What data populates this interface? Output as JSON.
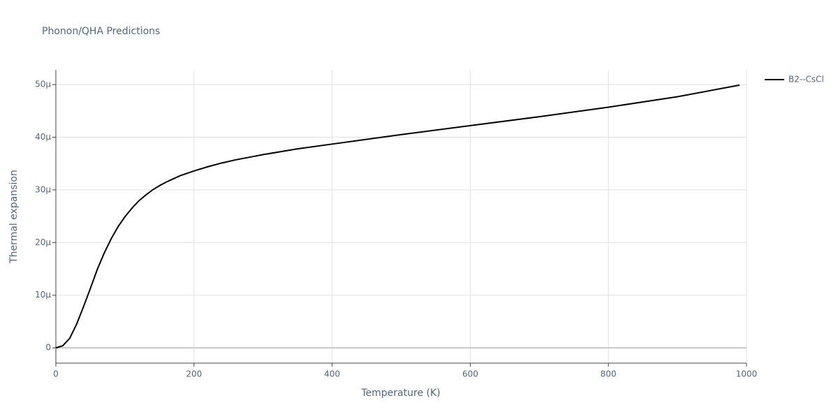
{
  "chart_data": {
    "type": "line",
    "title": "Phonon/QHA Predictions",
    "x_label": "Temperature (K)",
    "y_label": "Thermal expansion",
    "x": [
      0,
      10,
      20,
      30,
      40,
      50,
      60,
      70,
      80,
      90,
      100,
      110,
      120,
      130,
      140,
      150,
      160,
      170,
      180,
      200,
      220,
      240,
      260,
      280,
      300,
      350,
      400,
      450,
      500,
      600,
      700,
      800,
      900,
      990
    ],
    "series": [
      {
        "name": "B2--CsCl",
        "color": "#000000",
        "values": [
          0,
          0.4,
          1.8,
          4.5,
          7.8,
          11.3,
          14.9,
          18.0,
          20.7,
          23.0,
          24.9,
          26.5,
          27.9,
          29.0,
          30.0,
          30.8,
          31.5,
          32.1,
          32.7,
          33.6,
          34.4,
          35.1,
          35.7,
          36.2,
          36.7,
          37.8,
          38.7,
          39.6,
          40.5,
          42.2,
          43.9,
          45.7,
          47.7,
          49.9
        ]
      }
    ],
    "xlim": [
      0,
      1000
    ],
    "xticks": [
      0,
      200,
      400,
      600,
      800,
      1000
    ],
    "ylim": [
      -2.9,
      52.8
    ],
    "yticks": [
      0,
      {
        "value": 10,
        "label": "10µ"
      },
      {
        "value": 20,
        "label": "20µ"
      },
      {
        "value": 30,
        "label": "30µ"
      },
      {
        "value": 40,
        "label": "40µ"
      },
      {
        "value": 50,
        "label": "50µ"
      }
    ],
    "grid": true,
    "legend": "top-right"
  }
}
